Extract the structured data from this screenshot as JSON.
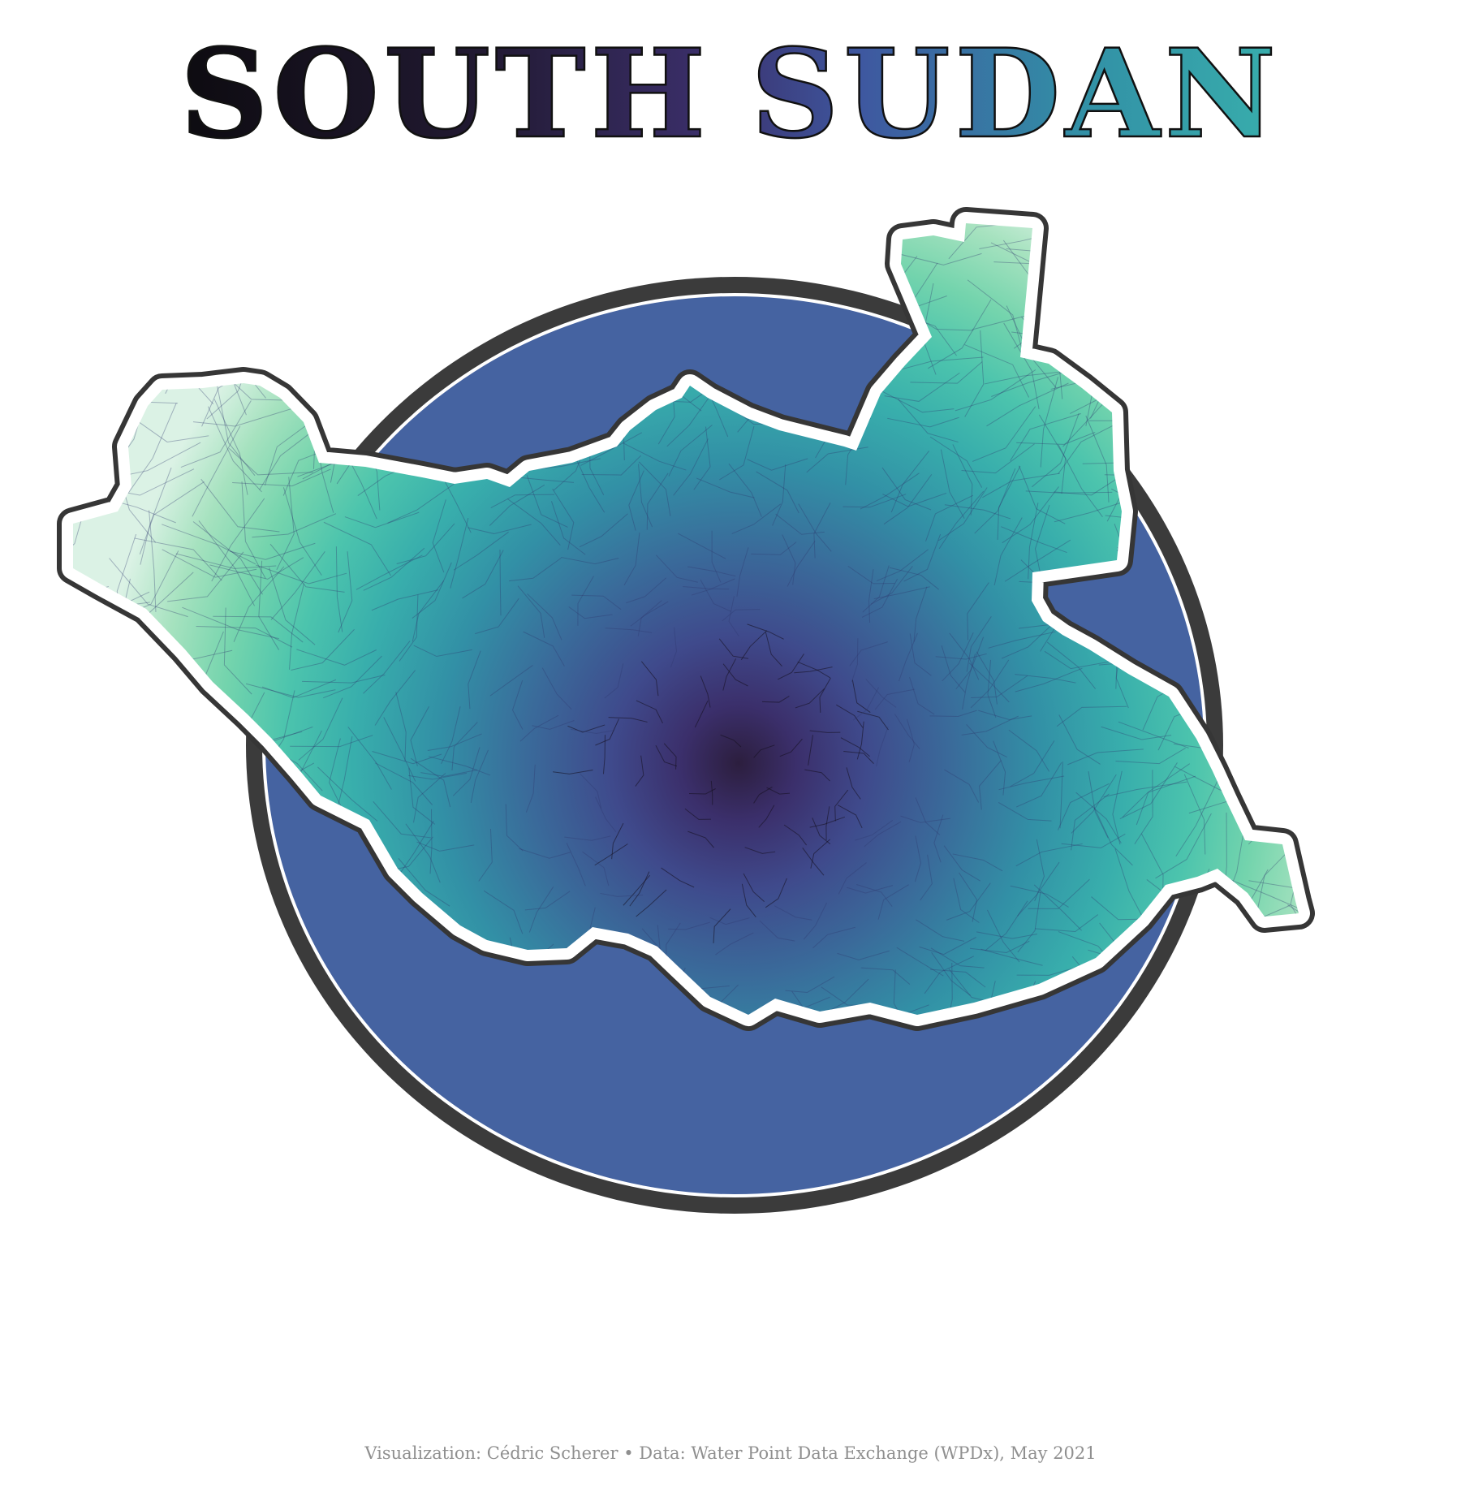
{
  "title": {
    "word1": "SOUTH",
    "word2": "SUDAN"
  },
  "colors": {
    "background": "#ffffff",
    "circle_fill": "#4563a1",
    "circle_ring": "#3b3b3b",
    "outline_dark": "#363636",
    "outline_white": "#ffffff",
    "palette": [
      "#2c1e3e",
      "#3b2f6b",
      "#3f4a8c",
      "#3a6a9a",
      "#3290a6",
      "#38aeac",
      "#4cc4ad",
      "#74d4ad",
      "#a6e2bf",
      "#dbf2e5"
    ]
  },
  "legend_title": "",
  "caption": "Visualization: Cédric Scherer • Data: Water Point Data Exchange (WPDx), May 2021"
}
